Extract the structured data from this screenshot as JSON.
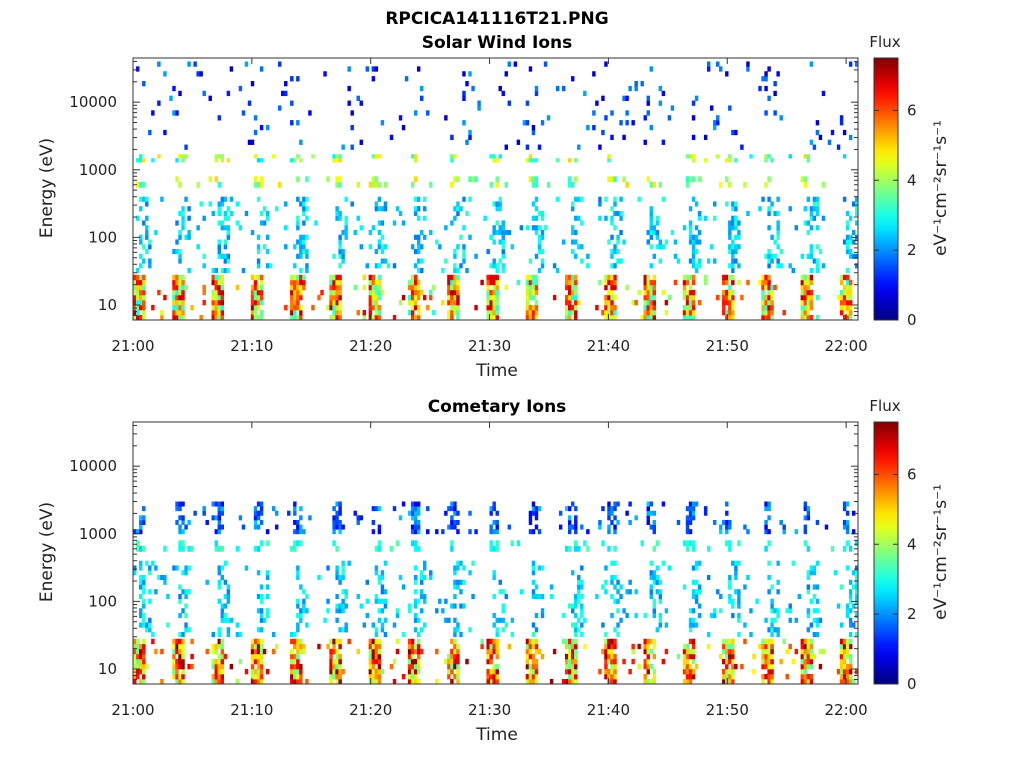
{
  "figure": {
    "title": "RPCICA141116T21.PNG"
  },
  "chart_data": [
    {
      "type": "heatmap",
      "title": "Solar Wind Ions",
      "xlabel": "Time",
      "ylabel": "Energy (eV)",
      "x_ticks": [
        "21:00",
        "21:10",
        "21:20",
        "21:30",
        "21:40",
        "21:50",
        "22:00"
      ],
      "x_range": [
        "21:00",
        "22:01"
      ],
      "y_scale": "log",
      "y_ticks": [
        "10",
        "100",
        "1000",
        "10000"
      ],
      "y_range": [
        6,
        45000
      ],
      "colorbar": {
        "label": "Flux",
        "units": "eV⁻¹cm⁻²sr⁻¹s⁻¹",
        "ticks": [
          "0",
          "2",
          "4",
          "6"
        ],
        "range": [
          0,
          7.5
        ]
      },
      "cycle_minutes": 3.3,
      "bands": [
        {
          "energy_min": 6,
          "energy_max": 28,
          "flux_min": 3.0,
          "flux_max": 7.2
        },
        {
          "energy_min": 30,
          "energy_max": 400,
          "flux_min": 1.8,
          "flux_max": 3.2
        },
        {
          "energy_min": 550,
          "energy_max": 800,
          "flux_min": 3.0,
          "flux_max": 5.0
        },
        {
          "energy_min": 1300,
          "energy_max": 1700,
          "flux_min": 2.5,
          "flux_max": 5.0
        },
        {
          "energy_min": 2000,
          "energy_max": 40000,
          "flux_min": 0.5,
          "flux_max": 2.2
        }
      ]
    },
    {
      "type": "heatmap",
      "title": "Cometary Ions",
      "xlabel": "Time",
      "ylabel": "Energy (eV)",
      "x_ticks": [
        "21:00",
        "21:10",
        "21:20",
        "21:30",
        "21:40",
        "21:50",
        "22:00"
      ],
      "x_range": [
        "21:00",
        "22:01"
      ],
      "y_scale": "log",
      "y_ticks": [
        "10",
        "100",
        "1000",
        "10000"
      ],
      "y_range": [
        6,
        45000
      ],
      "colorbar": {
        "label": "Flux",
        "units": "eV⁻¹cm⁻²sr⁻¹s⁻¹",
        "ticks": [
          "0",
          "2",
          "4",
          "6"
        ],
        "range": [
          0,
          7.5
        ]
      },
      "cycle_minutes": 3.3,
      "bands": [
        {
          "energy_min": 6,
          "energy_max": 28,
          "flux_min": 3.5,
          "flux_max": 7.5
        },
        {
          "energy_min": 30,
          "energy_max": 400,
          "flux_min": 1.8,
          "flux_max": 3.2
        },
        {
          "energy_min": 550,
          "energy_max": 800,
          "flux_min": 2.5,
          "flux_max": 3.5
        },
        {
          "energy_min": 1000,
          "energy_max": 3000,
          "flux_min": 0.8,
          "flux_max": 2.5
        }
      ]
    }
  ]
}
